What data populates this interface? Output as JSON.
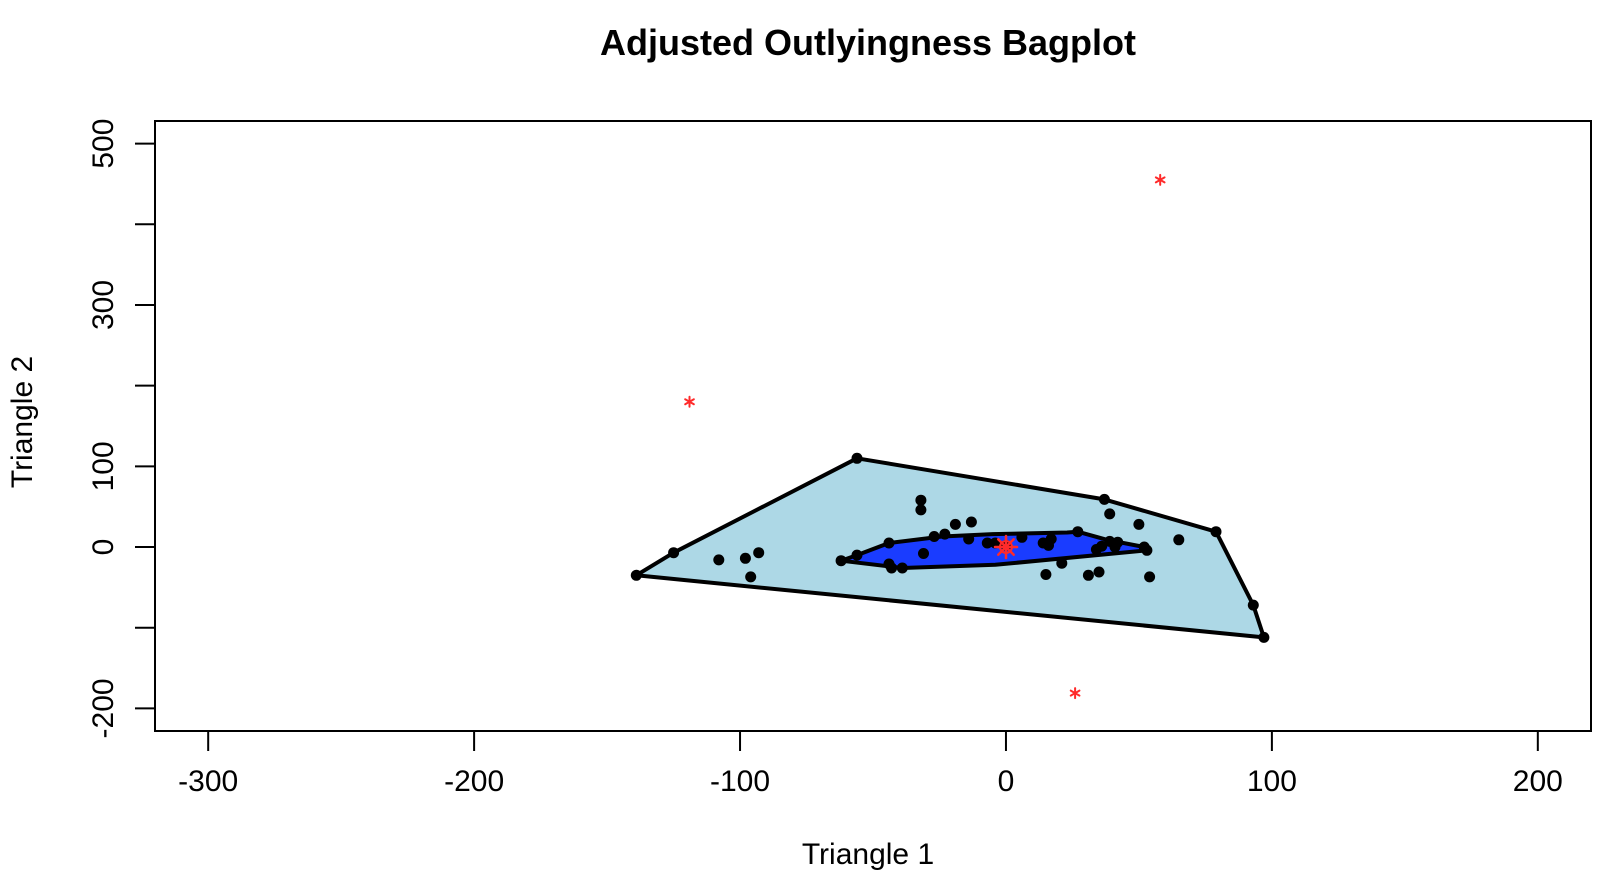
{
  "chart_data": {
    "type": "scatter",
    "title": "Adjusted Outlyingness Bagplot",
    "xlabel": "Triangle 1",
    "ylabel": "Triangle 2",
    "xlim": [
      -320,
      220
    ],
    "ylim": [
      -228,
      528
    ],
    "xticks": [
      -300,
      -200,
      -100,
      0,
      100,
      200
    ],
    "yticks": [
      -200,
      -100,
      0,
      100,
      200,
      300,
      400,
      500
    ],
    "ytick_labels_shown": [
      -200,
      0,
      100,
      300,
      500
    ],
    "grid": false,
    "colors": {
      "background": "#add8e6",
      "fence": "#add8e6",
      "bag": "#1a3cff",
      "points": "#000000",
      "outliers": "#ff2a2a",
      "center": "#ff2a2a",
      "outline": "#000000"
    },
    "fence_hull": [
      [
        -56,
        110
      ],
      [
        37,
        59
      ],
      [
        79,
        19
      ],
      [
        93,
        -72
      ],
      [
        97,
        -112
      ],
      [
        -139,
        -35
      ],
      [
        -125,
        -7
      ]
    ],
    "bag": [
      [
        -44,
        5
      ],
      [
        -24,
        13
      ],
      [
        -5,
        16
      ],
      [
        23,
        18
      ],
      [
        27,
        19
      ],
      [
        38,
        9
      ],
      [
        52,
        0
      ],
      [
        53,
        -4
      ],
      [
        -4,
        -22
      ],
      [
        -39,
        -26
      ],
      [
        -62,
        -17
      ],
      [
        -56,
        -10
      ]
    ],
    "center": [
      0,
      0
    ],
    "points": [
      [
        -56,
        110
      ],
      [
        37,
        59
      ],
      [
        79,
        19
      ],
      [
        93,
        -72
      ],
      [
        97,
        -112
      ],
      [
        -139,
        -35
      ],
      [
        -125,
        -7
      ],
      [
        -108,
        -16
      ],
      [
        -98,
        -14
      ],
      [
        -93,
        -7
      ],
      [
        -96,
        -37
      ],
      [
        -62,
        -17
      ],
      [
        -56,
        -10
      ],
      [
        -44,
        5
      ],
      [
        -44,
        -21
      ],
      [
        -43,
        -26
      ],
      [
        -39,
        -26
      ],
      [
        -32,
        58
      ],
      [
        -32,
        46
      ],
      [
        -31,
        -8
      ],
      [
        -27,
        13
      ],
      [
        -23,
        16
      ],
      [
        -19,
        28
      ],
      [
        -14,
        10
      ],
      [
        -13,
        31
      ],
      [
        -7,
        5
      ],
      [
        -4,
        5
      ],
      [
        0,
        2
      ],
      [
        6,
        12
      ],
      [
        14,
        5
      ],
      [
        16,
        2
      ],
      [
        17,
        10
      ],
      [
        15,
        -34
      ],
      [
        21,
        -20
      ],
      [
        27,
        19
      ],
      [
        31,
        -35
      ],
      [
        34,
        -3
      ],
      [
        35,
        -31
      ],
      [
        36,
        1
      ],
      [
        39,
        7
      ],
      [
        39,
        41
      ],
      [
        41,
        0
      ],
      [
        42,
        6
      ],
      [
        50,
        28
      ],
      [
        52,
        0
      ],
      [
        53,
        -4
      ],
      [
        54,
        -37
      ],
      [
        65,
        9
      ]
    ],
    "outliers": [
      [
        58,
        455
      ],
      [
        -119,
        180
      ],
      [
        26,
        -181
      ]
    ]
  }
}
